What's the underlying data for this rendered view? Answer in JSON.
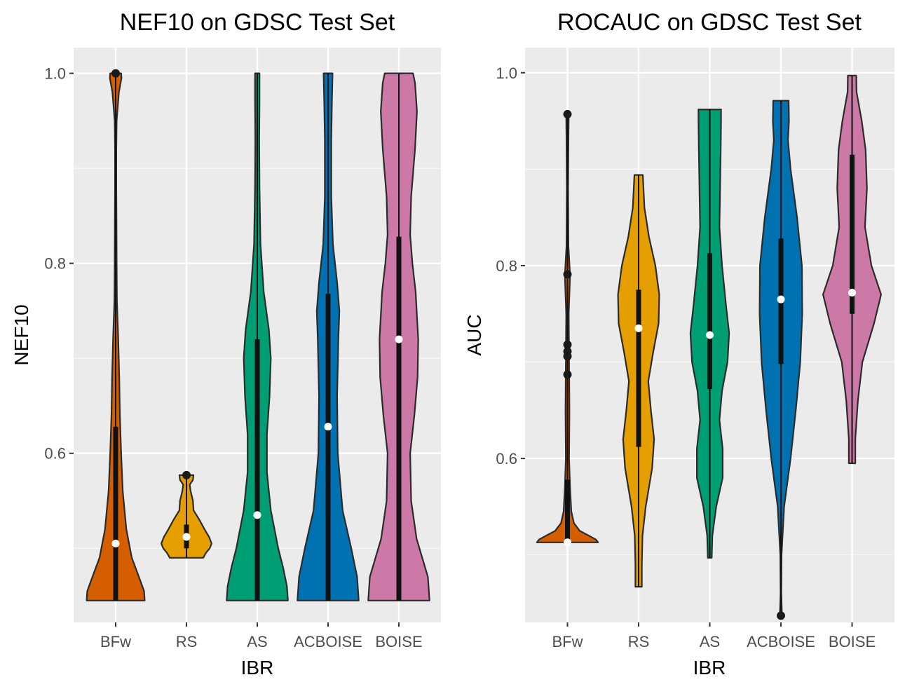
{
  "chart_data": [
    {
      "type": "violin",
      "title": "NEF10 on GDSC Test Set",
      "xlabel": "IBR",
      "ylabel": "NEF10",
      "categories": [
        "BFw",
        "RS",
        "AS",
        "ACBOISE",
        "BOISE"
      ],
      "y_ticks": [
        0.6,
        0.8,
        1.0
      ],
      "y_tick_labels": [
        "0.6",
        "0.8",
        "1.0"
      ],
      "ylim": [
        0.422,
        1.027
      ],
      "grid": true,
      "colors": [
        "#D55E00",
        "#E69F00",
        "#009E73",
        "#0072B2",
        "#CC79A7"
      ],
      "violins": [
        {
          "category": "BFw",
          "min": 0.445,
          "max": 1.0,
          "q1": 0.445,
          "median": 0.505,
          "q3": 0.628,
          "outliers": [
            1.0
          ],
          "density": [
            [
              0.445,
              0.9
            ],
            [
              0.455,
              0.88
            ],
            [
              0.47,
              0.72
            ],
            [
              0.49,
              0.5
            ],
            [
              0.52,
              0.33
            ],
            [
              0.56,
              0.22
            ],
            [
              0.6,
              0.17
            ],
            [
              0.64,
              0.13
            ],
            [
              0.68,
              0.11
            ],
            [
              0.72,
              0.08
            ],
            [
              0.76,
              0.04
            ],
            [
              0.8,
              0.03
            ],
            [
              0.84,
              0.025
            ],
            [
              0.88,
              0.02
            ],
            [
              0.92,
              0.02
            ],
            [
              0.95,
              0.03
            ],
            [
              0.98,
              0.1
            ],
            [
              0.995,
              0.18
            ],
            [
              1.0,
              0.17
            ]
          ]
        },
        {
          "category": "RS",
          "min": 0.49,
          "max": 0.577,
          "q1": 0.5,
          "median": 0.512,
          "q3": 0.525,
          "outliers": [
            0.577
          ],
          "density": [
            [
              0.49,
              0.52
            ],
            [
              0.495,
              0.6
            ],
            [
              0.5,
              0.72
            ],
            [
              0.505,
              0.78
            ],
            [
              0.512,
              0.7
            ],
            [
              0.52,
              0.56
            ],
            [
              0.53,
              0.4
            ],
            [
              0.54,
              0.22
            ],
            [
              0.55,
              0.2
            ],
            [
              0.56,
              0.13
            ],
            [
              0.567,
              0.1
            ],
            [
              0.572,
              0.2
            ],
            [
              0.577,
              0.22
            ]
          ]
        },
        {
          "category": "AS",
          "min": 0.445,
          "max": 1.0,
          "q1": 0.445,
          "median": 0.535,
          "q3": 0.72,
          "outliers": [],
          "density": [
            [
              0.445,
              0.95
            ],
            [
              0.46,
              0.92
            ],
            [
              0.48,
              0.8
            ],
            [
              0.5,
              0.65
            ],
            [
              0.54,
              0.42
            ],
            [
              0.58,
              0.3
            ],
            [
              0.62,
              0.3
            ],
            [
              0.66,
              0.38
            ],
            [
              0.7,
              0.42
            ],
            [
              0.73,
              0.36
            ],
            [
              0.77,
              0.2
            ],
            [
              0.82,
              0.1
            ],
            [
              0.88,
              0.07
            ],
            [
              0.93,
              0.06
            ],
            [
              0.97,
              0.07
            ],
            [
              1.0,
              0.07
            ]
          ]
        },
        {
          "category": "ACBOISE",
          "min": 0.445,
          "max": 1.0,
          "q1": 0.445,
          "median": 0.628,
          "q3": 0.768,
          "outliers": [],
          "density": [
            [
              0.445,
              0.95
            ],
            [
              0.47,
              0.9
            ],
            [
              0.5,
              0.72
            ],
            [
              0.54,
              0.45
            ],
            [
              0.6,
              0.3
            ],
            [
              0.66,
              0.28
            ],
            [
              0.72,
              0.32
            ],
            [
              0.75,
              0.35
            ],
            [
              0.78,
              0.28
            ],
            [
              0.82,
              0.15
            ],
            [
              0.87,
              0.1
            ],
            [
              0.93,
              0.1
            ],
            [
              0.97,
              0.12
            ],
            [
              1.0,
              0.14
            ]
          ]
        },
        {
          "category": "BOISE",
          "min": 0.445,
          "max": 1.0,
          "q1": 0.445,
          "median": 0.72,
          "q3": 0.828,
          "outliers": [],
          "density": [
            [
              0.445,
              0.95
            ],
            [
              0.47,
              0.9
            ],
            [
              0.51,
              0.55
            ],
            [
              0.55,
              0.38
            ],
            [
              0.6,
              0.35
            ],
            [
              0.64,
              0.48
            ],
            [
              0.68,
              0.58
            ],
            [
              0.72,
              0.6
            ],
            [
              0.77,
              0.52
            ],
            [
              0.8,
              0.42
            ],
            [
              0.83,
              0.35
            ],
            [
              0.87,
              0.38
            ],
            [
              0.92,
              0.5
            ],
            [
              0.96,
              0.56
            ],
            [
              0.99,
              0.5
            ],
            [
              1.0,
              0.44
            ]
          ]
        }
      ]
    },
    {
      "type": "violin",
      "title": "ROCAUC on GDSC Test Set",
      "xlabel": "IBR",
      "ylabel": "AUC",
      "categories": [
        "BFw",
        "RS",
        "AS",
        "ACBOISE",
        "BOISE"
      ],
      "y_ticks": [
        0.6,
        0.8,
        1.0
      ],
      "y_tick_labels": [
        "0.6",
        "0.8",
        "1.0"
      ],
      "ylim": [
        0.43,
        1.026
      ],
      "grid": true,
      "colors": [
        "#D55E00",
        "#E69F00",
        "#009E73",
        "#0072B2",
        "#CC79A7"
      ],
      "violins": [
        {
          "category": "BFw",
          "min": 0.513,
          "max": 0.957,
          "q1": 0.513,
          "median": 0.513,
          "q3": 0.578,
          "outliers": [
            0.957,
            0.791,
            0.718,
            0.711,
            0.706,
            0.687
          ],
          "density": [
            [
              0.513,
              0.95
            ],
            [
              0.516,
              0.88
            ],
            [
              0.52,
              0.66
            ],
            [
              0.525,
              0.38
            ],
            [
              0.533,
              0.2
            ],
            [
              0.545,
              0.12
            ],
            [
              0.57,
              0.08
            ],
            [
              0.6,
              0.05
            ],
            [
              0.65,
              0.06
            ],
            [
              0.7,
              0.05
            ],
            [
              0.75,
              0.04
            ],
            [
              0.79,
              0.08
            ],
            [
              0.82,
              0.03
            ],
            [
              0.88,
              0.02
            ],
            [
              0.93,
              0.03
            ],
            [
              0.957,
              0.04
            ]
          ]
        },
        {
          "category": "RS",
          "min": 0.467,
          "max": 0.894,
          "q1": 0.612,
          "median": 0.735,
          "q3": 0.775,
          "outliers": [],
          "density": [
            [
              0.467,
              0.1
            ],
            [
              0.49,
              0.1
            ],
            [
              0.52,
              0.12
            ],
            [
              0.55,
              0.22
            ],
            [
              0.59,
              0.42
            ],
            [
              0.62,
              0.48
            ],
            [
              0.65,
              0.38
            ],
            [
              0.68,
              0.3
            ],
            [
              0.71,
              0.45
            ],
            [
              0.74,
              0.62
            ],
            [
              0.77,
              0.64
            ],
            [
              0.8,
              0.52
            ],
            [
              0.83,
              0.32
            ],
            [
              0.86,
              0.18
            ],
            [
              0.894,
              0.13
            ]
          ]
        },
        {
          "category": "AS",
          "min": 0.497,
          "max": 0.962,
          "q1": 0.672,
          "median": 0.728,
          "q3": 0.813,
          "outliers": [],
          "density": [
            [
              0.497,
              0.06
            ],
            [
              0.52,
              0.08
            ],
            [
              0.55,
              0.2
            ],
            [
              0.58,
              0.4
            ],
            [
              0.61,
              0.4
            ],
            [
              0.64,
              0.3
            ],
            [
              0.67,
              0.38
            ],
            [
              0.7,
              0.55
            ],
            [
              0.73,
              0.6
            ],
            [
              0.76,
              0.5
            ],
            [
              0.8,
              0.38
            ],
            [
              0.84,
              0.3
            ],
            [
              0.88,
              0.32
            ],
            [
              0.92,
              0.34
            ],
            [
              0.95,
              0.35
            ],
            [
              0.962,
              0.35
            ]
          ]
        },
        {
          "category": "ACBOISE",
          "min": 0.437,
          "max": 0.971,
          "q1": 0.698,
          "median": 0.765,
          "q3": 0.828,
          "outliers": [
            0.437
          ],
          "density": [
            [
              0.44,
              0.03
            ],
            [
              0.46,
              0.01
            ],
            [
              0.5,
              0.02
            ],
            [
              0.55,
              0.1
            ],
            [
              0.6,
              0.3
            ],
            [
              0.65,
              0.46
            ],
            [
              0.7,
              0.6
            ],
            [
              0.75,
              0.66
            ],
            [
              0.8,
              0.65
            ],
            [
              0.85,
              0.5
            ],
            [
              0.9,
              0.3
            ],
            [
              0.93,
              0.22
            ],
            [
              0.95,
              0.25
            ],
            [
              0.971,
              0.24
            ]
          ]
        },
        {
          "category": "BOISE",
          "min": 0.595,
          "max": 0.997,
          "q1": 0.75,
          "median": 0.772,
          "q3": 0.915,
          "outliers": [],
          "density": [
            [
              0.595,
              0.1
            ],
            [
              0.62,
              0.1
            ],
            [
              0.66,
              0.18
            ],
            [
              0.7,
              0.32
            ],
            [
              0.74,
              0.68
            ],
            [
              0.77,
              0.9
            ],
            [
              0.8,
              0.6
            ],
            [
              0.84,
              0.4
            ],
            [
              0.88,
              0.46
            ],
            [
              0.92,
              0.42
            ],
            [
              0.95,
              0.3
            ],
            [
              0.98,
              0.14
            ],
            [
              0.997,
              0.13
            ]
          ]
        }
      ]
    }
  ]
}
